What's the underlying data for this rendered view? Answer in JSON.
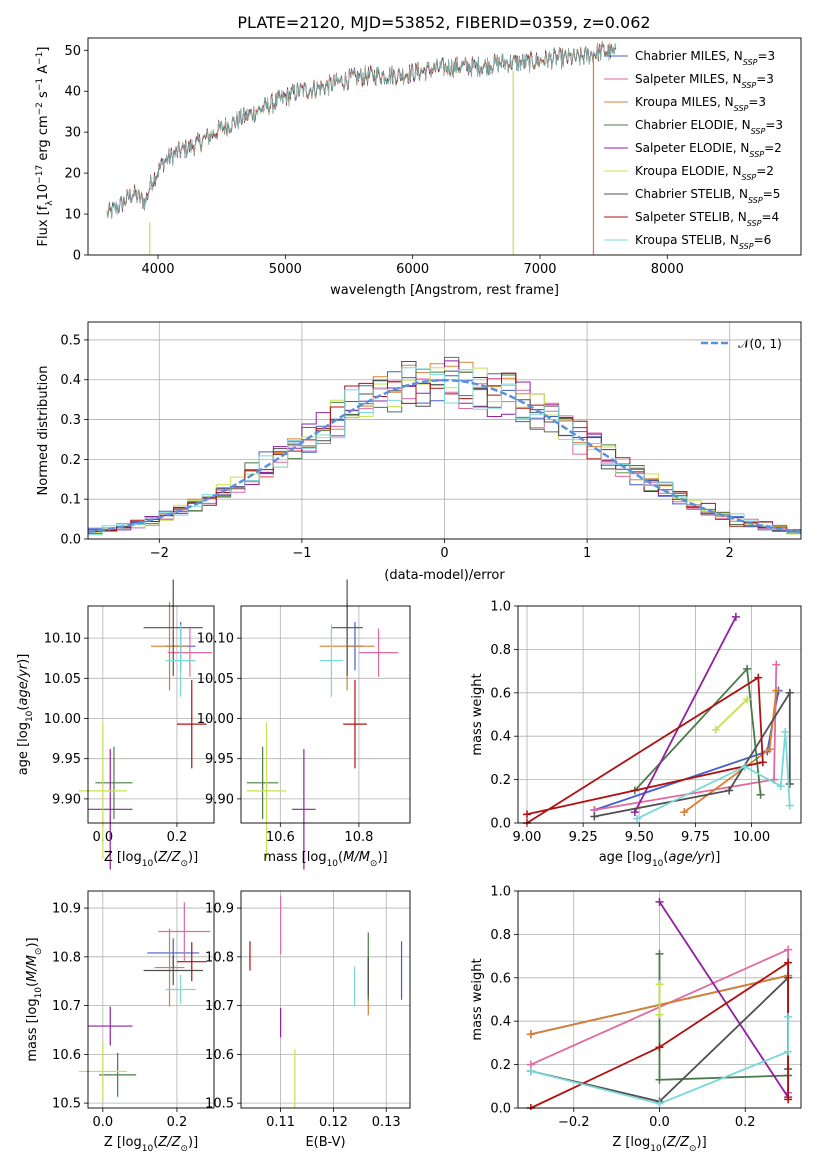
{
  "title": "PLATE=2120, MJD=53852, FIBERID=0359, z=0.062",
  "colors": {
    "chab_miles": "#4060d0",
    "salp_miles": "#e06aa0",
    "krou_miles": "#d98030",
    "chab_elodie": "#4a7a4a",
    "salp_elodie": "#9020a0",
    "krou_elodie": "#c8e050",
    "chab_stelib": "#505050",
    "salp_stelib": "#b01010",
    "krou_stelib": "#78d8d8",
    "normal": "#5a90e0",
    "grid": "#b0b0b0"
  },
  "chart_data": [
    {
      "id": "spectrum",
      "type": "line",
      "xlabel": "wavelength [Angstrom, rest frame]",
      "ylabel": "Flux [fλ10⁻¹⁷ erg cm⁻² s⁻¹ A⁻¹]",
      "xlim": [
        3450,
        9050
      ],
      "ylim": [
        0,
        53
      ],
      "xticks": [
        4000,
        5000,
        6000,
        7000,
        8000
      ],
      "yticks": [
        0,
        10,
        20,
        30,
        40,
        50
      ],
      "grid": false,
      "legend_position": "top-right",
      "data_curve": {
        "x": [
          3600,
          3700,
          3800,
          3900,
          3950,
          4050,
          4150,
          4300,
          4500,
          4700,
          4900,
          5100,
          5300,
          5500,
          5700,
          5900,
          6100,
          6300,
          6500,
          6700,
          6900,
          7100,
          7300,
          7500,
          7600
        ],
        "y": [
          10,
          12,
          15,
          13,
          18,
          23,
          25,
          27,
          31,
          34,
          37,
          40,
          41,
          43,
          44,
          44,
          45,
          46,
          46,
          47,
          47,
          48,
          48,
          50,
          49
        ]
      },
      "series": [
        {
          "name": "Chabrier MILES, N_SSP=3",
          "color_key": "chab_miles"
        },
        {
          "name": "Salpeter MILES, N_SSP=3",
          "color_key": "salp_miles"
        },
        {
          "name": "Kroupa MILES, N_SSP=3",
          "color_key": "krou_miles"
        },
        {
          "name": "Chabrier ELODIE, N_SSP=3",
          "color_key": "chab_elodie"
        },
        {
          "name": "Salpeter ELODIE, N_SSP=2",
          "color_key": "salp_elodie"
        },
        {
          "name": "Kroupa ELODIE, N_SSP=2",
          "color_key": "krou_elodie"
        },
        {
          "name": "Chabrier STELIB, N_SSP=5",
          "color_key": "chab_stelib"
        },
        {
          "name": "Salpeter STELIB, N_SSP=4",
          "color_key": "salp_stelib"
        },
        {
          "name": "Kroupa STELIB, N_SSP=6",
          "color_key": "krou_stelib"
        }
      ],
      "legend_labels": [
        {
          "pre": "Chabrier MILES, N",
          "sub": "SSP",
          "post": "=3"
        },
        {
          "pre": "Salpeter MILES, N",
          "sub": "SSP",
          "post": "=3"
        },
        {
          "pre": "Kroupa MILES, N",
          "sub": "SSP",
          "post": "=3"
        },
        {
          "pre": "Chabrier ELODIE, N",
          "sub": "SSP",
          "post": "=3"
        },
        {
          "pre": "Salpeter ELODIE, N",
          "sub": "SSP",
          "post": "=2"
        },
        {
          "pre": "Kroupa ELODIE, N",
          "sub": "SSP",
          "post": "=2"
        },
        {
          "pre": "Chabrier STELIB, N",
          "sub": "SSP",
          "post": "=5"
        },
        {
          "pre": "Salpeter STELIB, N",
          "sub": "SSP",
          "post": "=4"
        },
        {
          "pre": "Kroupa STELIB, N",
          "sub": "SSP",
          "post": "=6"
        }
      ]
    },
    {
      "id": "residuals",
      "type": "line",
      "xlabel": "(data-model)/error",
      "ylabel": "Normed distribution",
      "xlim": [
        -2.5,
        2.5
      ],
      "ylim": [
        0,
        0.545
      ],
      "xticks": [
        -2,
        -1,
        0,
        1,
        2
      ],
      "yticks": [
        0.0,
        0.1,
        0.2,
        0.3,
        0.4,
        0.5
      ],
      "grid": true,
      "legend_position": "top-right",
      "legend_label": "𝒩(0, 1)",
      "reference_curve": {
        "name": "N(0,1)",
        "mean": 0,
        "sigma": 1
      },
      "bin_width": 0.1
    },
    {
      "id": "age_vs_Z",
      "type": "scatter",
      "xlabel": "Z [log10(Z/Z⊙)]",
      "ylabel": "age  [log10(age/yr)]",
      "xlim": [
        -0.04,
        0.3
      ],
      "ylim": [
        9.87,
        10.14
      ],
      "xticks": [
        0.0,
        0.2
      ],
      "yticks": [
        9.9,
        9.95,
        10.0,
        10.05,
        10.1
      ],
      "grid": true,
      "points": [
        {
          "color_key": "chab_miles",
          "x": 0.21,
          "y": 10.09,
          "xerr": 0.04,
          "yerr": 0.03
        },
        {
          "color_key": "salp_miles",
          "x": 0.235,
          "y": 10.082,
          "xerr": 0.06,
          "yerr": 0.03
        },
        {
          "color_key": "krou_miles",
          "x": 0.18,
          "y": 10.09,
          "xerr": 0.05,
          "yerr": 0.055
        },
        {
          "color_key": "chab_elodie",
          "x": 0.03,
          "y": 9.92,
          "xerr": 0.05,
          "yerr": 0.045
        },
        {
          "color_key": "salp_elodie",
          "x": 0.02,
          "y": 9.887,
          "xerr": 0.06,
          "yerr": 0.075
        },
        {
          "color_key": "krou_elodie",
          "x": 0.0,
          "y": 9.91,
          "xerr": 0.065,
          "yerr": 0.085
        },
        {
          "color_key": "chab_stelib",
          "x": 0.19,
          "y": 10.113,
          "xerr": 0.08,
          "yerr": 0.06
        },
        {
          "color_key": "salp_stelib",
          "x": 0.24,
          "y": 9.993,
          "xerr": 0.04,
          "yerr": 0.055
        },
        {
          "color_key": "krou_stelib",
          "x": 0.21,
          "y": 10.072,
          "xerr": 0.04,
          "yerr": 0.045
        }
      ]
    },
    {
      "id": "age_vs_mass",
      "type": "scatter",
      "xlabel": "mass [log10(M/M⊙)]",
      "ylabel": "",
      "xlim": [
        10.5,
        10.93
      ],
      "ylim": [
        9.87,
        10.14
      ],
      "xticks": [
        10.6,
        10.8
      ],
      "yticks": [
        9.9,
        9.95,
        10.0,
        10.05,
        10.1
      ],
      "grid": true,
      "points": [
        {
          "color_key": "chab_miles",
          "x": 10.79,
          "y": 10.09,
          "xerr": 0.02,
          "yerr": 0.03
        },
        {
          "color_key": "salp_miles",
          "x": 10.85,
          "y": 10.082,
          "xerr": 0.05,
          "yerr": 0.03
        },
        {
          "color_key": "krou_miles",
          "x": 10.77,
          "y": 10.09,
          "xerr": 0.07,
          "yerr": 0.055
        },
        {
          "color_key": "chab_elodie",
          "x": 10.555,
          "y": 9.92,
          "xerr": 0.04,
          "yerr": 0.045
        },
        {
          "color_key": "salp_elodie",
          "x": 10.66,
          "y": 9.887,
          "xerr": 0.03,
          "yerr": 0.075
        },
        {
          "color_key": "krou_elodie",
          "x": 10.565,
          "y": 9.91,
          "xerr": 0.05,
          "yerr": 0.085
        },
        {
          "color_key": "chab_stelib",
          "x": 10.77,
          "y": 10.113,
          "xerr": 0.04,
          "yerr": 0.06
        },
        {
          "color_key": "salp_stelib",
          "x": 10.79,
          "y": 9.993,
          "xerr": 0.03,
          "yerr": 0.055
        },
        {
          "color_key": "krou_stelib",
          "x": 10.73,
          "y": 10.072,
          "xerr": 0.03,
          "yerr": 0.045
        }
      ]
    },
    {
      "id": "weight_vs_age",
      "type": "line",
      "xlabel": "age  [log10(age/yr)]",
      "ylabel": "mass weight",
      "xlim": [
        8.96,
        10.22
      ],
      "ylim": [
        0,
        1.0
      ],
      "xticks": [
        9.0,
        9.25,
        9.5,
        9.75,
        10.0
      ],
      "yticks": [
        0.0,
        0.2,
        0.4,
        0.6,
        0.8,
        1.0
      ],
      "grid": true,
      "series": [
        {
          "color_key": "chab_miles",
          "x": [
            9.3,
            10.07,
            10.12
          ],
          "y": [
            0.06,
            0.33,
            0.61
          ]
        },
        {
          "color_key": "salp_miles",
          "x": [
            9.3,
            10.1,
            10.11
          ],
          "y": [
            0.06,
            0.2,
            0.73
          ]
        },
        {
          "color_key": "krou_miles",
          "x": [
            9.7,
            10.08,
            10.11
          ],
          "y": [
            0.05,
            0.34,
            0.61
          ]
        },
        {
          "color_key": "chab_elodie",
          "x": [
            9.48,
            9.98,
            10.04
          ],
          "y": [
            0.15,
            0.71,
            0.13
          ]
        },
        {
          "color_key": "salp_elodie",
          "x": [
            9.48,
            9.93
          ],
          "y": [
            0.05,
            0.95
          ]
        },
        {
          "color_key": "krou_elodie",
          "x": [
            9.84,
            9.98
          ],
          "y": [
            0.43,
            0.57
          ]
        },
        {
          "color_key": "chab_stelib",
          "x": [
            9.3,
            9.9,
            10.17,
            10.17
          ],
          "y": [
            0.03,
            0.15,
            0.6,
            0.18
          ]
        },
        {
          "color_key": "salp_stelib",
          "x": [
            9.0,
            10.03,
            10.05,
            9.0
          ],
          "y": [
            0.0,
            0.67,
            0.28,
            0.04
          ]
        },
        {
          "color_key": "krou_stelib",
          "x": [
            9.49,
            9.97,
            10.13,
            10.15,
            10.17
          ],
          "y": [
            0.02,
            0.26,
            0.17,
            0.42,
            0.08
          ]
        }
      ]
    },
    {
      "id": "mass_vs_Z",
      "type": "scatter",
      "xlabel": "Z [log10(Z/Z⊙)]",
      "ylabel": "mass [log10(M/M⊙)]",
      "xlim": [
        -0.04,
        0.3
      ],
      "ylim": [
        10.49,
        10.935
      ],
      "xticks": [
        0.0,
        0.2
      ],
      "yticks": [
        10.5,
        10.6,
        10.7,
        10.8,
        10.9
      ],
      "grid": true,
      "points": [
        {
          "color_key": "chab_miles",
          "x": 0.19,
          "y": 10.808,
          "xerr": 0.07,
          "yerr": 0.03
        },
        {
          "color_key": "salp_miles",
          "x": 0.22,
          "y": 10.852,
          "xerr": 0.07,
          "yerr": 0.06
        },
        {
          "color_key": "krou_miles",
          "x": 0.18,
          "y": 10.778,
          "xerr": 0.04,
          "yerr": 0.08
        },
        {
          "color_key": "chab_elodie",
          "x": 0.04,
          "y": 10.558,
          "xerr": 0.05,
          "yerr": 0.045
        },
        {
          "color_key": "salp_elodie",
          "x": 0.02,
          "y": 10.658,
          "xerr": 0.06,
          "yerr": 0.04
        },
        {
          "color_key": "krou_elodie",
          "x": 0.0,
          "y": 10.565,
          "xerr": 0.065,
          "yerr": 0.06
        },
        {
          "color_key": "chab_stelib",
          "x": 0.19,
          "y": 10.772,
          "xerr": 0.08,
          "yerr": 0.03
        },
        {
          "color_key": "salp_stelib",
          "x": 0.24,
          "y": 10.79,
          "xerr": 0.04,
          "yerr": 0.04
        },
        {
          "color_key": "krou_stelib",
          "x": 0.21,
          "y": 10.733,
          "xerr": 0.04,
          "yerr": 0.03
        }
      ]
    },
    {
      "id": "mass_vs_ebv",
      "type": "scatter",
      "xlabel": "E(B-V)",
      "ylabel": "",
      "xlim": [
        0.1025,
        0.1345
      ],
      "ylim": [
        10.49,
        10.935
      ],
      "xticks": [
        0.11,
        0.12,
        0.13
      ],
      "yticks": [
        10.5,
        10.6,
        10.7,
        10.8,
        10.9
      ],
      "grid": true,
      "points": [
        {
          "color_key": "chab_miles",
          "x": 0.1329,
          "y": 10.772,
          "xerr": 0.0,
          "yerr": 0.06
        },
        {
          "color_key": "salp_miles",
          "x": 0.11,
          "y": 10.865,
          "xerr": 0.0,
          "yerr": 0.06
        },
        {
          "color_key": "krou_miles",
          "x": 0.1266,
          "y": 10.74,
          "xerr": 0.0,
          "yerr": 0.06
        },
        {
          "color_key": "chab_elodie",
          "x": 0.1266,
          "y": 10.78,
          "xerr": 0.0,
          "yerr": 0.07
        },
        {
          "color_key": "salp_elodie",
          "x": 0.11,
          "y": 10.665,
          "xerr": 0.0,
          "yerr": 0.03
        },
        {
          "color_key": "krou_elodie",
          "x": 0.1127,
          "y": 10.55,
          "xerr": 0.0,
          "yerr": 0.06
        },
        {
          "color_key": "chab_stelib",
          "x": 0.1266,
          "y": 10.76,
          "xerr": 0.0,
          "yerr": 0.04
        },
        {
          "color_key": "salp_stelib",
          "x": 0.1042,
          "y": 10.802,
          "xerr": 0.0,
          "yerr": 0.03
        },
        {
          "color_key": "krou_stelib",
          "x": 0.124,
          "y": 10.74,
          "xerr": 0.0,
          "yerr": 0.04
        }
      ]
    },
    {
      "id": "weight_vs_Z",
      "type": "line",
      "xlabel": "Z [log10(Z/Z⊙)]",
      "ylabel": "mass weight",
      "xlim": [
        -0.33,
        0.33
      ],
      "ylim": [
        0,
        1.0
      ],
      "xticks": [
        -0.2,
        0.0,
        0.2
      ],
      "yticks": [
        0.0,
        0.2,
        0.4,
        0.6,
        0.8,
        1.0
      ],
      "grid": true,
      "series": [
        {
          "color_key": "chab_miles",
          "x": [
            -0.3,
            0.3
          ],
          "y": [
            0.34,
            0.61
          ]
        },
        {
          "color_key": "salp_miles",
          "x": [
            -0.3,
            0.3,
            0.3
          ],
          "y": [
            0.2,
            0.73,
            0.07
          ]
        },
        {
          "color_key": "krou_miles",
          "x": [
            -0.3,
            0.3
          ],
          "y": [
            0.34,
            0.61
          ]
        },
        {
          "color_key": "chab_elodie",
          "x": [
            0.0,
            0.0,
            0.3
          ],
          "y": [
            0.71,
            0.13,
            0.15
          ]
        },
        {
          "color_key": "salp_elodie",
          "x": [
            0.0,
            0.3
          ],
          "y": [
            0.95,
            0.05
          ]
        },
        {
          "color_key": "krou_elodie",
          "x": [
            0.0,
            0.0
          ],
          "y": [
            0.57,
            0.43
          ]
        },
        {
          "color_key": "chab_stelib",
          "x": [
            -0.3,
            0.0,
            0.3,
            0.3
          ],
          "y": [
            0.17,
            0.03,
            0.6,
            0.18
          ]
        },
        {
          "color_key": "salp_stelib",
          "x": [
            -0.3,
            0.0,
            0.3,
            0.3
          ],
          "y": [
            0.0,
            0.28,
            0.67,
            0.04
          ]
        },
        {
          "color_key": "krou_stelib",
          "x": [
            -0.3,
            0.0,
            0.3,
            0.3
          ],
          "y": [
            0.17,
            0.02,
            0.26,
            0.42
          ]
        }
      ]
    }
  ]
}
